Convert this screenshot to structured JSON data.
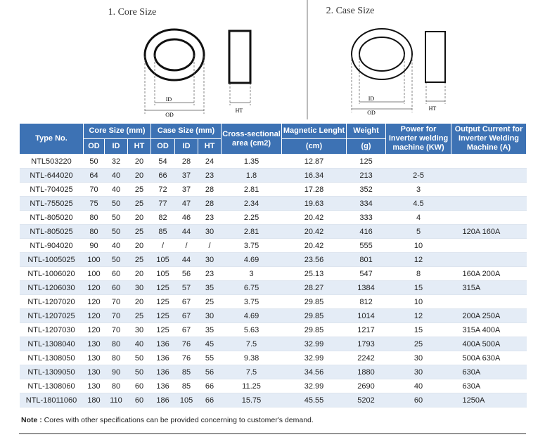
{
  "diagrams": [
    {
      "title": "1. Core Size",
      "id_label": "ID",
      "od_label": "OD",
      "ht_label": "HT"
    },
    {
      "title": "2. Case Size",
      "id_label": "ID",
      "od_label": "OD",
      "ht_label": "HT"
    }
  ],
  "table": {
    "header": {
      "type_no": "Type No.",
      "core_size": "Core Size (mm)",
      "case_size": "Case Size (mm)",
      "cross_section": "Cross-sectional area (cm2)",
      "magnetic": "Magnetic Lenght",
      "magnetic_unit": "(cm)",
      "weight": "Weight",
      "weight_unit": "(g)",
      "power": "Power for Inverter welding machine (KW)",
      "output": "Output Current for Inverter Welding Machine (A)",
      "core_sub": [
        "OD",
        "ID",
        "HT"
      ],
      "case_sub": [
        "OD",
        "ID",
        "HT"
      ]
    },
    "rows": [
      [
        "NTL503220",
        "50",
        "32",
        "20",
        "54",
        "28",
        "24",
        "1.35",
        "12.87",
        "125",
        null,
        null
      ],
      [
        "NTL-644020",
        "64",
        "40",
        "20",
        "66",
        "37",
        "23",
        "1.8",
        "16.34",
        "213",
        "2-5",
        null
      ],
      [
        "NTL-704025",
        "70",
        "40",
        "25",
        "72",
        "37",
        "28",
        "2.81",
        "17.28",
        "352",
        "3",
        null
      ],
      [
        "NTL-755025",
        "75",
        "50",
        "25",
        "77",
        "47",
        "28",
        "2.34",
        "19.63",
        "334",
        "4.5",
        null
      ],
      [
        "NTL-805020",
        "80",
        "50",
        "20",
        "82",
        "46",
        "23",
        "2.25",
        "20.42",
        "333",
        "4",
        null
      ],
      [
        "NTL-805025",
        "80",
        "50",
        "25",
        "85",
        "44",
        "30",
        "2.81",
        "20.42",
        "416",
        "5",
        "120A 160A"
      ],
      [
        "NTL-904020",
        "90",
        "40",
        "20",
        "/",
        "/",
        "/",
        "3.75",
        "20.42",
        "555",
        "10",
        null
      ],
      [
        "NTL-1005025",
        "100",
        "50",
        "25",
        "105",
        "44",
        "30",
        "4.69",
        "23.56",
        "801",
        "12",
        null
      ],
      [
        "NTL-1006020",
        "100",
        "60",
        "20",
        "105",
        "56",
        "23",
        "3",
        "25.13",
        "547",
        "8",
        "160A 200A"
      ],
      [
        "NTL-1206030",
        "120",
        "60",
        "30",
        "125",
        "57",
        "35",
        "6.75",
        "28.27",
        "1384",
        "15",
        "315A"
      ],
      [
        "NTL-1207020",
        "120",
        "70",
        "20",
        "125",
        "67",
        "25",
        "3.75",
        "29.85",
        "812",
        "10",
        null
      ],
      [
        "NTL-1207025",
        "120",
        "70",
        "25",
        "125",
        "67",
        "30",
        "4.69",
        "29.85",
        "1014",
        "12",
        "200A 250A"
      ],
      [
        "NTL-1207030",
        "120",
        "70",
        "30",
        "125",
        "67",
        "35",
        "5.63",
        "29.85",
        "1217",
        "15",
        "315A 400A"
      ],
      [
        "NTL-1308040",
        "130",
        "80",
        "40",
        "136",
        "76",
        "45",
        "7.5",
        "32.99",
        "1793",
        "25",
        "400A 500A"
      ],
      [
        "NTL-1308050",
        "130",
        "80",
        "50",
        "136",
        "76",
        "55",
        "9.38",
        "32.99",
        "2242",
        "30",
        "500A 630A"
      ],
      [
        "NTL-1309050",
        "130",
        "90",
        "50",
        "136",
        "85",
        "56",
        "7.5",
        "34.56",
        "1880",
        "30",
        "630A"
      ],
      [
        "NTL-1308060",
        "130",
        "80",
        "60",
        "136",
        "85",
        "66",
        "11.25",
        "32.99",
        "2690",
        "40",
        "630A"
      ],
      [
        "NTL-18011060",
        "180",
        "110",
        "60",
        "186",
        "105",
        "66",
        "15.75",
        "45.55",
        "5202",
        "60",
        "1250A"
      ]
    ]
  },
  "note": {
    "label": "Note :",
    "text": "Cores with other specifications can be provided concerning to customer's demand."
  }
}
